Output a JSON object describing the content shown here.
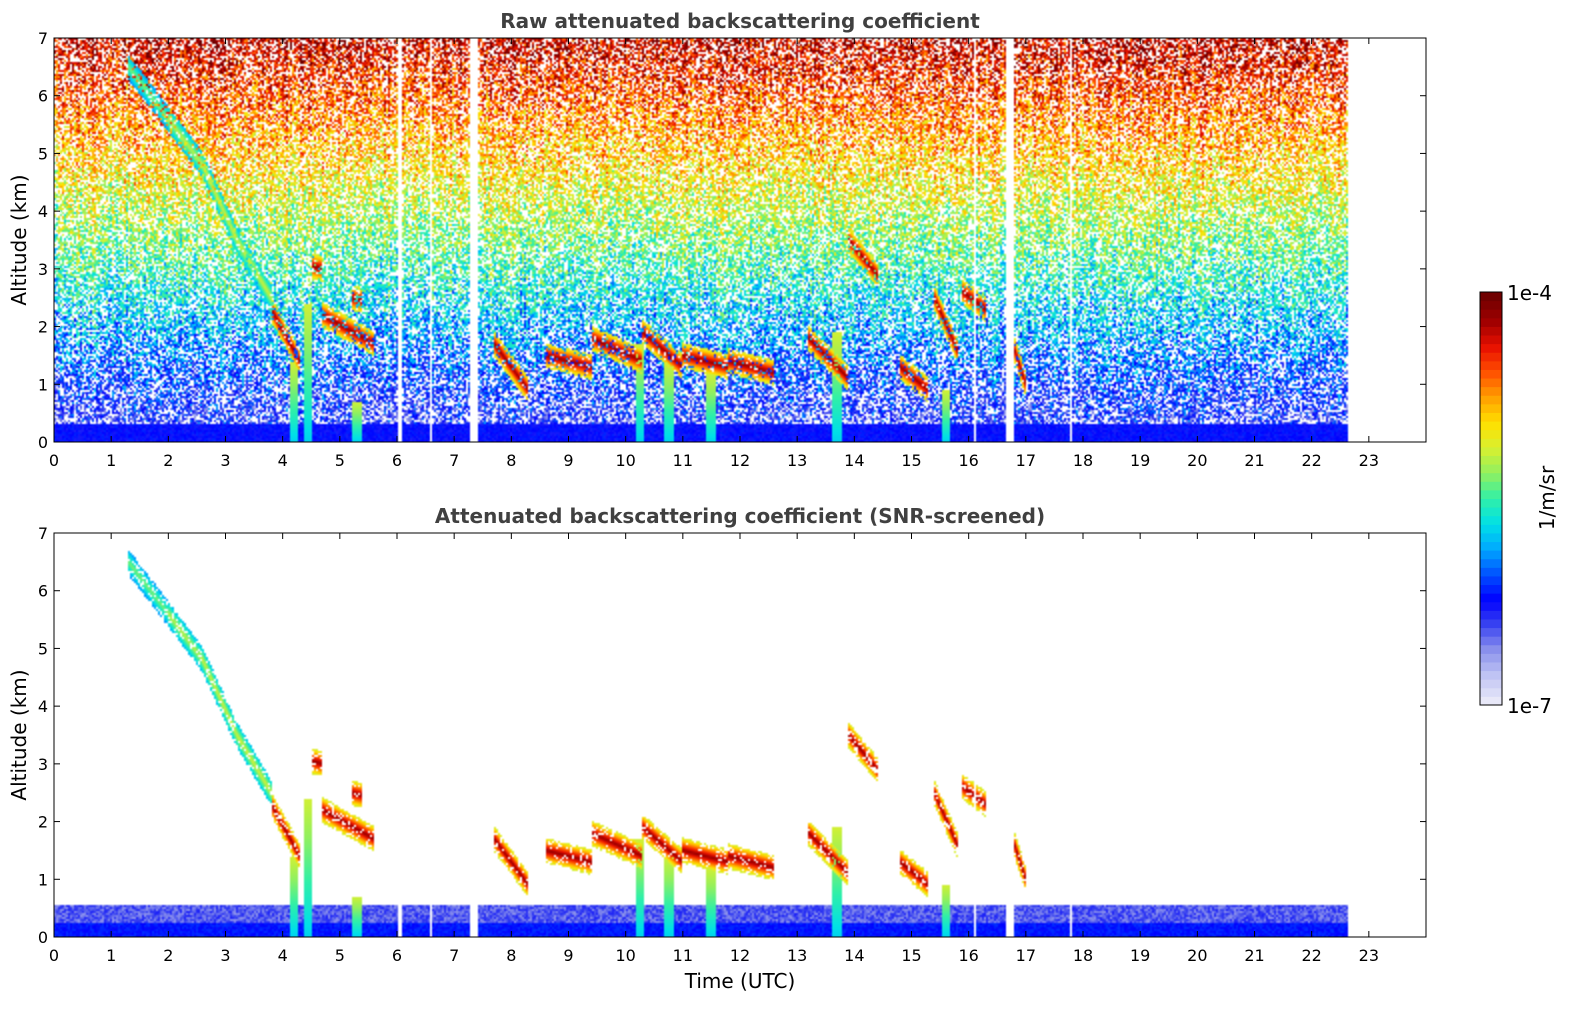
{
  "chart_data": [
    {
      "type": "heatmap",
      "title": "Raw attenuated backscattering coefficient",
      "xlabel": "",
      "ylabel": "Altitude (km)",
      "xlim": [
        0,
        24
      ],
      "ylim": [
        0,
        7
      ],
      "xticks": [
        "0",
        "1",
        "2",
        "3",
        "4",
        "5",
        "6",
        "7",
        "8",
        "9",
        "10",
        "11",
        "12",
        "13",
        "14",
        "15",
        "16",
        "17",
        "18",
        "19",
        "20",
        "21",
        "22",
        "23"
      ],
      "yticks": [
        "0",
        "1",
        "2",
        "3",
        "4",
        "5",
        "6",
        "7"
      ],
      "data_end_time": 22.65,
      "gaps": [
        {
          "time": 7.35,
          "width": 0.12
        },
        {
          "time": 16.72,
          "width": 0.14
        },
        {
          "time": 17.8,
          "width": 0.05
        },
        {
          "time": 6.05,
          "width": 0.04
        },
        {
          "time": 6.6,
          "width": 0.03
        },
        {
          "time": 16.1,
          "width": 0.03
        }
      ],
      "aerosol_layer_top_km": 0.3,
      "cloud_features": [
        {
          "start": 1.3,
          "end": 2.0,
          "alt_start": 6.5,
          "alt_end": 5.6,
          "level": 0.55
        },
        {
          "start": 2.0,
          "end": 2.6,
          "alt_start": 5.6,
          "alt_end": 4.8,
          "level": 0.6
        },
        {
          "start": 2.6,
          "end": 3.2,
          "alt_start": 4.8,
          "alt_end": 3.5,
          "level": 0.62
        },
        {
          "start": 3.2,
          "end": 3.8,
          "alt_start": 3.5,
          "alt_end": 2.5,
          "level": 0.62
        },
        {
          "start": 3.8,
          "end": 4.3,
          "alt_start": 2.3,
          "alt_end": 1.4,
          "level": 0.95
        },
        {
          "start": 4.5,
          "end": 4.7,
          "alt_start": 3.05,
          "alt_end": 3.0,
          "level": 0.95
        },
        {
          "start": 4.7,
          "end": 5.6,
          "alt_start": 2.2,
          "alt_end": 1.7,
          "level": 0.95
        },
        {
          "start": 5.2,
          "end": 5.4,
          "alt_start": 2.5,
          "alt_end": 2.45,
          "level": 0.95
        },
        {
          "start": 7.7,
          "end": 8.3,
          "alt_start": 1.7,
          "alt_end": 0.9,
          "level": 0.95
        },
        {
          "start": 8.6,
          "end": 9.4,
          "alt_start": 1.5,
          "alt_end": 1.3,
          "level": 0.95
        },
        {
          "start": 9.4,
          "end": 10.3,
          "alt_start": 1.8,
          "alt_end": 1.4,
          "level": 0.95
        },
        {
          "start": 10.3,
          "end": 11.0,
          "alt_start": 1.9,
          "alt_end": 1.3,
          "level": 0.95
        },
        {
          "start": 11.0,
          "end": 11.8,
          "alt_start": 1.5,
          "alt_end": 1.3,
          "level": 0.95
        },
        {
          "start": 11.8,
          "end": 12.6,
          "alt_start": 1.4,
          "alt_end": 1.2,
          "level": 0.95
        },
        {
          "start": 13.2,
          "end": 13.9,
          "alt_start": 1.8,
          "alt_end": 1.1,
          "level": 0.95
        },
        {
          "start": 13.9,
          "end": 14.4,
          "alt_start": 3.5,
          "alt_end": 2.9,
          "level": 0.95
        },
        {
          "start": 14.8,
          "end": 15.3,
          "alt_start": 1.3,
          "alt_end": 0.9,
          "level": 0.95
        },
        {
          "start": 15.4,
          "end": 15.8,
          "alt_start": 2.5,
          "alt_end": 1.6,
          "level": 0.95
        },
        {
          "start": 15.9,
          "end": 16.3,
          "alt_start": 2.6,
          "alt_end": 2.3,
          "level": 0.95
        },
        {
          "start": 16.8,
          "end": 17.0,
          "alt_start": 1.6,
          "alt_end": 1.0,
          "level": 0.95
        }
      ],
      "precipitation_columns": [
        {
          "time": 4.2,
          "alt_top": 1.4
        },
        {
          "time": 4.45,
          "alt_top": 2.4
        },
        {
          "time": 5.3,
          "alt_top": 0.7
        },
        {
          "time": 10.25,
          "alt_top": 1.7
        },
        {
          "time": 10.75,
          "alt_top": 1.4
        },
        {
          "time": 11.5,
          "alt_top": 1.2
        },
        {
          "time": 13.7,
          "alt_top": 1.9
        },
        {
          "time": 15.6,
          "alt_top": 0.9
        }
      ]
    },
    {
      "type": "heatmap",
      "title": "Attenuated backscattering coefficient (SNR-screened)",
      "xlabel": "Time (UTC)",
      "ylabel": "Altitude (km)",
      "xlim": [
        0,
        24
      ],
      "ylim": [
        0,
        7
      ],
      "xticks": [
        "0",
        "1",
        "2",
        "3",
        "4",
        "5",
        "6",
        "7",
        "8",
        "9",
        "10",
        "11",
        "12",
        "13",
        "14",
        "15",
        "16",
        "17",
        "18",
        "19",
        "20",
        "21",
        "22",
        "23"
      ],
      "yticks": [
        "0",
        "1",
        "2",
        "3",
        "4",
        "5",
        "6",
        "7"
      ],
      "data_end_time": 22.65,
      "boundary_layer_top_km": 0.55,
      "colorbar": {
        "label": "1/m/sr",
        "min_label": "1e-7",
        "max_label": "1e-4"
      }
    }
  ],
  "colormap": [
    "#e8e8f8",
    "#c0c4f4",
    "#8c92ec",
    "#3a44f0",
    "#0000ff",
    "#0050ff",
    "#00a8ff",
    "#00e0e8",
    "#30f0a8",
    "#90f060",
    "#d8f030",
    "#ffe000",
    "#ffa000",
    "#ff5000",
    "#e81000",
    "#a00000",
    "#700000"
  ]
}
